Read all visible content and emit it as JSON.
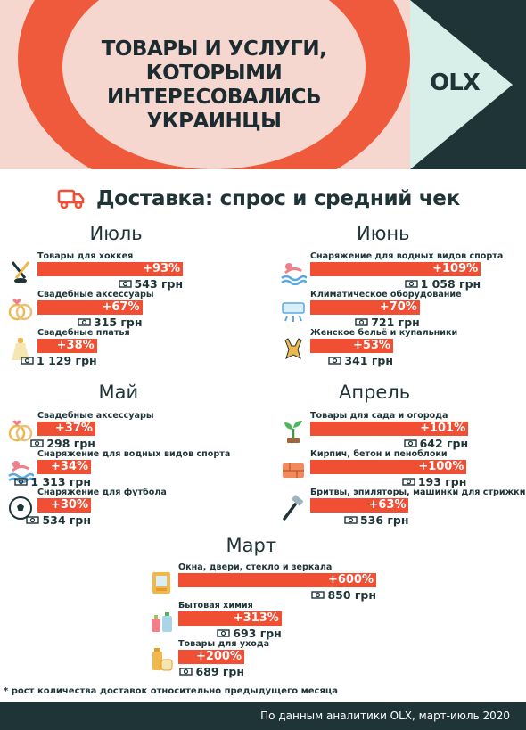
{
  "header": {
    "title_lines": [
      "ТОВАРЫ И УСЛУГИ,",
      "КОТОРЫМИ",
      "ИНТЕРЕСОВАЛИСЬ",
      "УКРАИНЦЫ"
    ],
    "logo": "OLX"
  },
  "subtitle": "Доставка: спрос и средний чек",
  "chart_data": [
    {
      "type": "bar",
      "month": "Июль",
      "categories": [
        "Товары для хоккея",
        "Свадебные аксессуары",
        "Свадебные платья"
      ],
      "growth_labels": [
        "+93%",
        "+67%",
        "+38%"
      ],
      "growth": [
        93,
        67,
        38
      ],
      "avg_check_labels": [
        "543 грн",
        "315 грн",
        "1 129 грн"
      ],
      "avg_check": [
        543,
        315,
        1129
      ]
    },
    {
      "type": "bar",
      "month": "Июнь",
      "categories": [
        "Снаряжение для водных видов спорта",
        "Климатическое оборудование",
        "Женское бельё и купальники"
      ],
      "growth_labels": [
        "+109%",
        "+70%",
        "+53%"
      ],
      "growth": [
        109,
        70,
        53
      ],
      "avg_check_labels": [
        "1 058 грн",
        "721 грн",
        "341 грн"
      ],
      "avg_check": [
        1058,
        721,
        341
      ]
    },
    {
      "type": "bar",
      "month": "Май",
      "categories": [
        "Свадебные аксессуары",
        "Снаряжение для водных видов спорта",
        "Снаряжение для футбола"
      ],
      "growth_labels": [
        "+37%",
        "+34%",
        "+30%"
      ],
      "growth": [
        37,
        34,
        30
      ],
      "avg_check_labels": [
        "298 грн",
        "1 313 грн",
        "534 грн"
      ],
      "avg_check": [
        298,
        1313,
        534
      ]
    },
    {
      "type": "bar",
      "month": "Апрель",
      "categories": [
        "Товары для сада и огорода",
        "Кирпич, бетон и пеноблоки",
        "Бритвы, эпиляторы, машинки для стрижки"
      ],
      "growth_labels": [
        "+101%",
        "+100%",
        "+63%"
      ],
      "growth": [
        101,
        100,
        63
      ],
      "avg_check_labels": [
        "642 грн",
        "193 грн",
        "536 грн"
      ],
      "avg_check": [
        642,
        193,
        536
      ]
    },
    {
      "type": "bar",
      "month": "Март",
      "categories": [
        "Окна, двери, стекло и зеркала",
        "Бытовая химия",
        "Товары для ухода"
      ],
      "growth_labels": [
        "+600%",
        "+313%",
        "+200%"
      ],
      "growth": [
        600,
        313,
        200
      ],
      "avg_check_labels": [
        "850 грн",
        "693 грн",
        "689 грн"
      ],
      "avg_check": [
        850,
        693,
        689
      ]
    }
  ],
  "icons": [
    [
      "hockey-icon",
      "rings-icon",
      "dress-icon"
    ],
    [
      "swimmer-icon",
      "air-conditioner-icon",
      "swimsuit-icon"
    ],
    [
      "rings-icon",
      "swimmer-icon",
      "football-icon"
    ],
    [
      "sprout-icon",
      "brick-icon",
      "razor-icon"
    ],
    [
      "window-icon",
      "chemicals-icon",
      "care-products-icon"
    ]
  ],
  "footnote": "* рост количества доставок относительно предыдущего месяца",
  "source": "По данным аналитики OLX, март-июль 2020",
  "colors": {
    "accent": "#f04f34",
    "dark": "#1e3437",
    "pink": "#f6d7cf",
    "mint": "#d8efe9"
  }
}
